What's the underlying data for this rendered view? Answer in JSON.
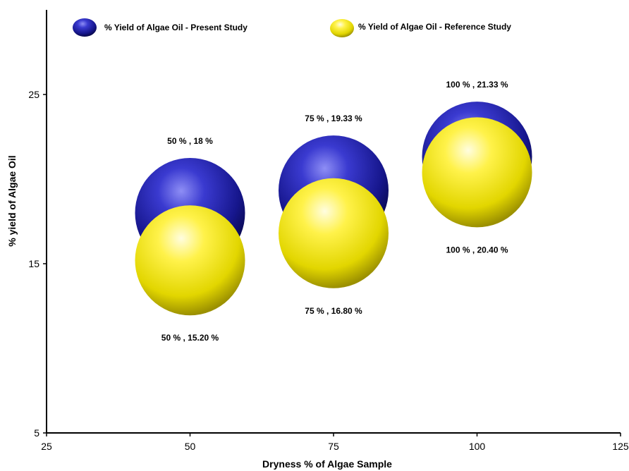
{
  "chart_data": {
    "type": "bubble",
    "title": "",
    "xlabel": "Dryness % of Algae Sample",
    "ylabel": "% yield of Algae Oil",
    "xlim": [
      25,
      125
    ],
    "ylim": [
      5,
      30
    ],
    "xticks": [
      "25",
      "50",
      "75",
      "100",
      "125"
    ],
    "yticks": [
      "5",
      "15",
      "25"
    ],
    "legend_position": "top",
    "series": [
      {
        "name": "% Yield of Algae Oil - Present Study",
        "color": "#1a1a8c",
        "points": [
          {
            "x": 50,
            "y": 18,
            "label": "50 %  , 18 %"
          },
          {
            "x": 75,
            "y": 19.33,
            "label": "75 %  , 19.33 %"
          },
          {
            "x": 100,
            "y": 21.33,
            "label": "100 % , 21.33  %"
          }
        ]
      },
      {
        "name": "% Yield of Algae Oil - Reference Study",
        "color": "#f2e600",
        "points": [
          {
            "x": 50,
            "y": 15.2,
            "label": "50 %   , 15.20 %"
          },
          {
            "x": 75,
            "y": 16.8,
            "label": "75  % , 16.80 %"
          },
          {
            "x": 100,
            "y": 20.4,
            "label": "100 %  , 20.40 %"
          }
        ]
      }
    ]
  }
}
